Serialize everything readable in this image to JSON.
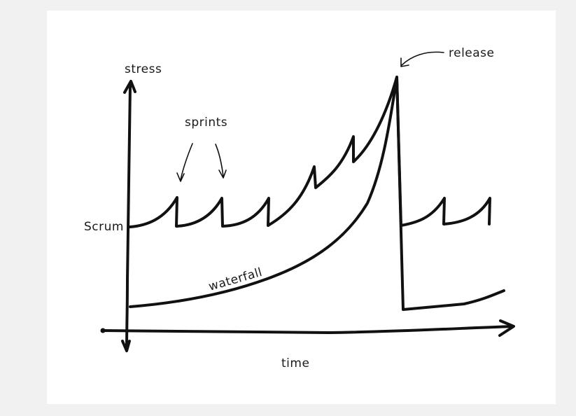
{
  "labels": {
    "y_axis": "stress",
    "x_axis": "time",
    "scrum": "Scrum",
    "sprints": "sprints",
    "waterfall": "waterfall",
    "release": "release"
  },
  "colors": {
    "page_background": "#f1f1f1",
    "sheet_background": "#ffffff",
    "ink": "#111111"
  }
}
